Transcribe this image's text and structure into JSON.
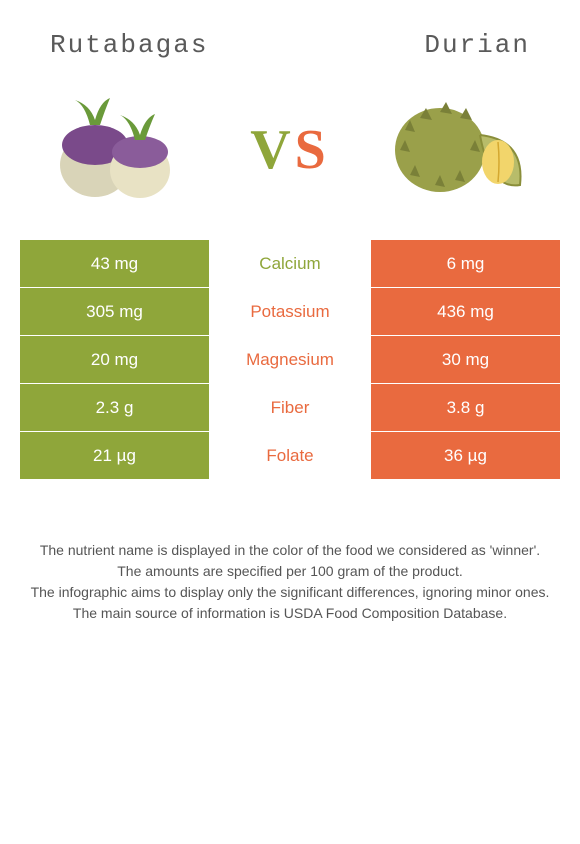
{
  "header": {
    "left_title": "Rutabagas",
    "right_title": "Durian",
    "vs_v": "V",
    "vs_s": "S"
  },
  "colors": {
    "left": "#8fa63a",
    "right": "#e96a3f",
    "left_text": "#8fa63a",
    "right_text": "#e96a3f"
  },
  "nutrients": [
    {
      "left": "43 mg",
      "name": "Calcium",
      "right": "6 mg",
      "winner": "left"
    },
    {
      "left": "305 mg",
      "name": "Potassium",
      "right": "436 mg",
      "winner": "right"
    },
    {
      "left": "20 mg",
      "name": "Magnesium",
      "right": "30 mg",
      "winner": "right"
    },
    {
      "left": "2.3 g",
      "name": "Fiber",
      "right": "3.8 g",
      "winner": "right"
    },
    {
      "left": "21 µg",
      "name": "Folate",
      "right": "36 µg",
      "winner": "right"
    }
  ],
  "footer": {
    "line1": "The nutrient name is displayed in the color of the food we considered as 'winner'.",
    "line2": "The amounts are specified per 100 gram of the product.",
    "line3": "The infographic aims to display only the significant differences, ignoring minor ones.",
    "line4": "The main source of information is USDA Food Composition Database."
  },
  "food_images": {
    "left_alt": "rutabagas-illustration",
    "right_alt": "durian-illustration"
  }
}
